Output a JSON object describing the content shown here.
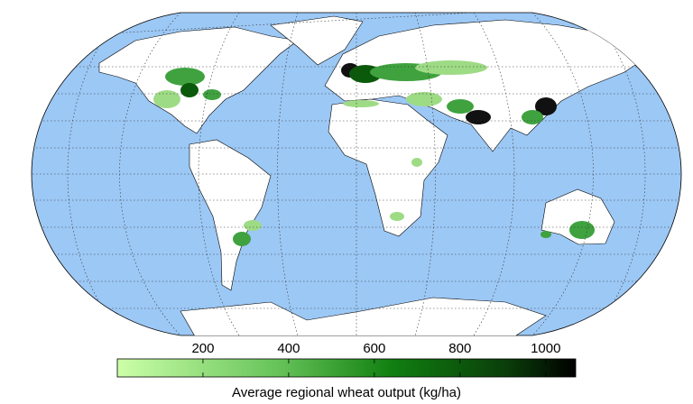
{
  "colorbar": {
    "label": "Average regional wheat output (kg/ha)",
    "lim": [
      0,
      1070
    ],
    "ticks": [
      200,
      400,
      600,
      800,
      1000
    ]
  }
}
